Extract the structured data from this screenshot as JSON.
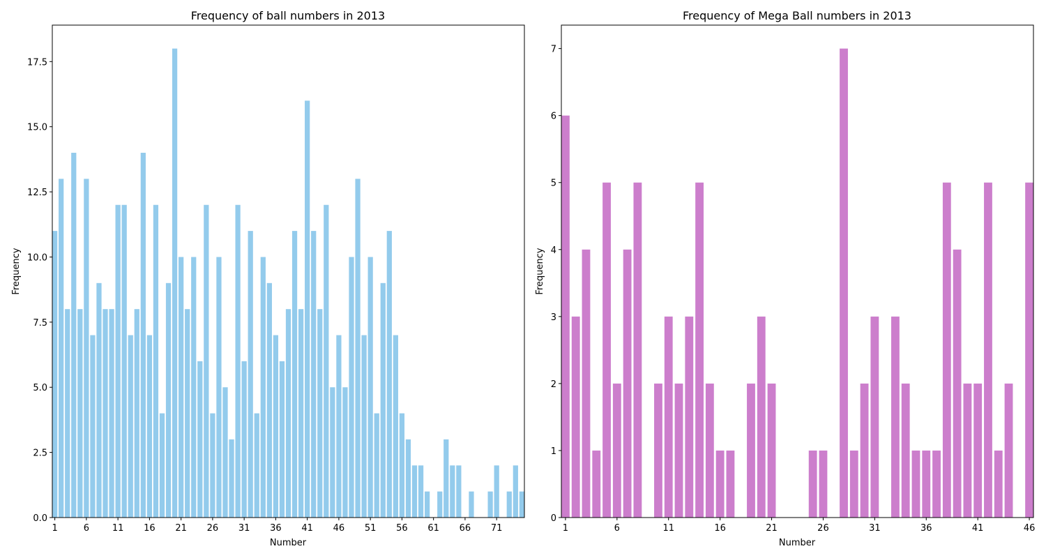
{
  "chart_data": [
    {
      "type": "bar",
      "title": "Frequency of ball numbers in 2013",
      "xlabel": "Number",
      "ylabel": "Frequency",
      "color": "#93CBEC",
      "ylim": [
        0,
        18.9
      ],
      "xticks": [
        1,
        6,
        11,
        16,
        21,
        26,
        31,
        36,
        41,
        46,
        51,
        56,
        61,
        66,
        71
      ],
      "yticks": [
        "0.0",
        "2.5",
        "5.0",
        "7.5",
        "10.0",
        "12.5",
        "15.0",
        "17.5"
      ],
      "x": [
        1,
        2,
        3,
        4,
        5,
        6,
        7,
        8,
        9,
        10,
        11,
        12,
        13,
        14,
        15,
        16,
        17,
        18,
        19,
        20,
        21,
        22,
        23,
        24,
        25,
        26,
        27,
        28,
        29,
        30,
        31,
        32,
        33,
        34,
        35,
        36,
        37,
        38,
        39,
        40,
        41,
        42,
        43,
        44,
        45,
        46,
        47,
        48,
        49,
        50,
        51,
        52,
        53,
        54,
        55,
        56,
        57,
        58,
        59,
        60,
        61,
        62,
        63,
        64,
        65,
        66,
        67,
        68,
        69,
        70,
        71,
        72,
        73,
        74,
        75
      ],
      "values": [
        11,
        13,
        8,
        14,
        8,
        13,
        7,
        9,
        8,
        8,
        12,
        12,
        7,
        8,
        14,
        7,
        12,
        4,
        9,
        18,
        10,
        8,
        10,
        6,
        12,
        4,
        10,
        5,
        3,
        12,
        6,
        11,
        4,
        10,
        9,
        7,
        6,
        8,
        11,
        8,
        16,
        11,
        8,
        12,
        5,
        7,
        5,
        10,
        13,
        7,
        10,
        4,
        9,
        11,
        7,
        4,
        3,
        2,
        2,
        1,
        0,
        1,
        3,
        2,
        2,
        0,
        1,
        0,
        0,
        1,
        2,
        0,
        1,
        2,
        1
      ]
    },
    {
      "type": "bar",
      "title": "Frequency of Mega Ball numbers in 2013",
      "xlabel": "Number",
      "ylabel": "Frequency",
      "color": "#CC7ECC",
      "ylim": [
        0,
        7.35
      ],
      "xticks": [
        1,
        6,
        11,
        16,
        21,
        26,
        31,
        36,
        41,
        46
      ],
      "yticks": [
        "0",
        "1",
        "2",
        "3",
        "4",
        "5",
        "6",
        "7"
      ],
      "x": [
        1,
        2,
        3,
        4,
        5,
        6,
        7,
        8,
        9,
        10,
        11,
        12,
        13,
        14,
        15,
        16,
        17,
        18,
        19,
        20,
        21,
        22,
        23,
        24,
        25,
        26,
        27,
        28,
        29,
        30,
        31,
        32,
        33,
        34,
        35,
        36,
        37,
        38,
        39,
        40,
        41,
        42,
        43,
        44,
        45,
        46
      ],
      "values": [
        6,
        3,
        4,
        1,
        5,
        2,
        4,
        5,
        0,
        2,
        3,
        2,
        3,
        5,
        2,
        1,
        1,
        0,
        2,
        3,
        2,
        0,
        0,
        0,
        1,
        1,
        0,
        7,
        1,
        2,
        3,
        0,
        3,
        2,
        1,
        1,
        1,
        5,
        4,
        2,
        2,
        5,
        1,
        2,
        0,
        5
      ]
    }
  ]
}
